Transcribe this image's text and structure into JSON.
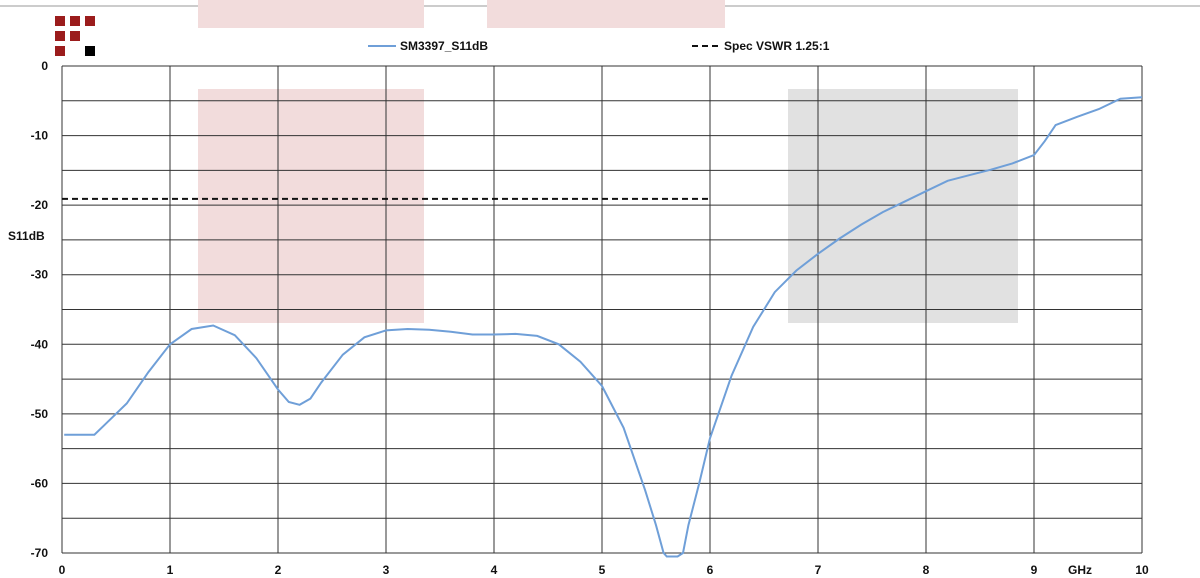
{
  "chart_data": {
    "type": "line",
    "title": "",
    "xlabel": "GHz",
    "ylabel": "S11dB",
    "xlim": [
      0,
      10
    ],
    "ylim": [
      -70,
      0
    ],
    "x_ticks": [
      0,
      1,
      2,
      3,
      4,
      5,
      6,
      7,
      8,
      9,
      10
    ],
    "y_ticks": [
      0,
      -10,
      -20,
      -30,
      -40,
      -50,
      -60,
      -70
    ],
    "grid": true,
    "legend": "top-center",
    "series": [
      {
        "name": "SM3397_S11dB",
        "color": "#6f9fd8",
        "style": "solid",
        "x": [
          0.02,
          0.3,
          0.4,
          0.6,
          0.8,
          1.0,
          1.2,
          1.4,
          1.6,
          1.8,
          2.0,
          2.1,
          2.2,
          2.3,
          2.4,
          2.6,
          2.8,
          3.0,
          3.2,
          3.4,
          3.6,
          3.8,
          4.0,
          4.2,
          4.4,
          4.6,
          4.8,
          5.0,
          5.2,
          5.4,
          5.5,
          5.57,
          5.6,
          5.65,
          5.7,
          5.75,
          5.8,
          5.9,
          6.0,
          6.2,
          6.4,
          6.6,
          6.8,
          7.0,
          7.2,
          7.4,
          7.6,
          7.8,
          8.0,
          8.2,
          8.4,
          8.6,
          8.8,
          9.0,
          9.1,
          9.2,
          9.4,
          9.6,
          9.8,
          10.0
        ],
        "y": [
          -53,
          -53,
          -51.5,
          -48.5,
          -44,
          -40,
          -37.8,
          -37.3,
          -38.7,
          -42,
          -46.5,
          -48.3,
          -48.7,
          -47.8,
          -45.5,
          -41.5,
          -39,
          -38,
          -37.8,
          -37.9,
          -38.2,
          -38.6,
          -38.6,
          -38.5,
          -38.8,
          -40,
          -42.5,
          -46,
          -52,
          -61,
          -66,
          -70,
          -70.5,
          -70.5,
          -70.5,
          -70,
          -66,
          -60,
          -53.5,
          -44.5,
          -37.5,
          -32.5,
          -29.4,
          -27,
          -24.8,
          -22.8,
          -21,
          -19.5,
          -18,
          -16.5,
          -15.7,
          -14.9,
          -14,
          -12.8,
          -10.8,
          -8.5,
          -7.3,
          -6.2,
          -4.7,
          -4.5
        ]
      },
      {
        "name": "Spec VSWR 1.25:1",
        "color": "#111111",
        "style": "dashed",
        "x": [
          0,
          6
        ],
        "y": [
          -19.1,
          -19.1
        ]
      }
    ]
  },
  "decor": {
    "logo_dark": "#9b1c1c",
    "logo_black": "#000000",
    "shade_pink": "#f2dcdc",
    "shade_gray": "#e1e1e1"
  }
}
